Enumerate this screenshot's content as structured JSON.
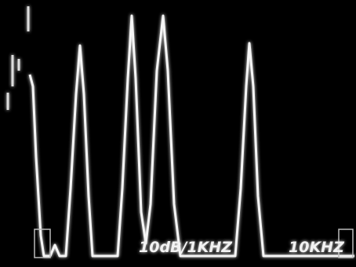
{
  "screen": {
    "scale_label": "10dB/1KHZ",
    "span_label": "10KHZ"
  }
}
